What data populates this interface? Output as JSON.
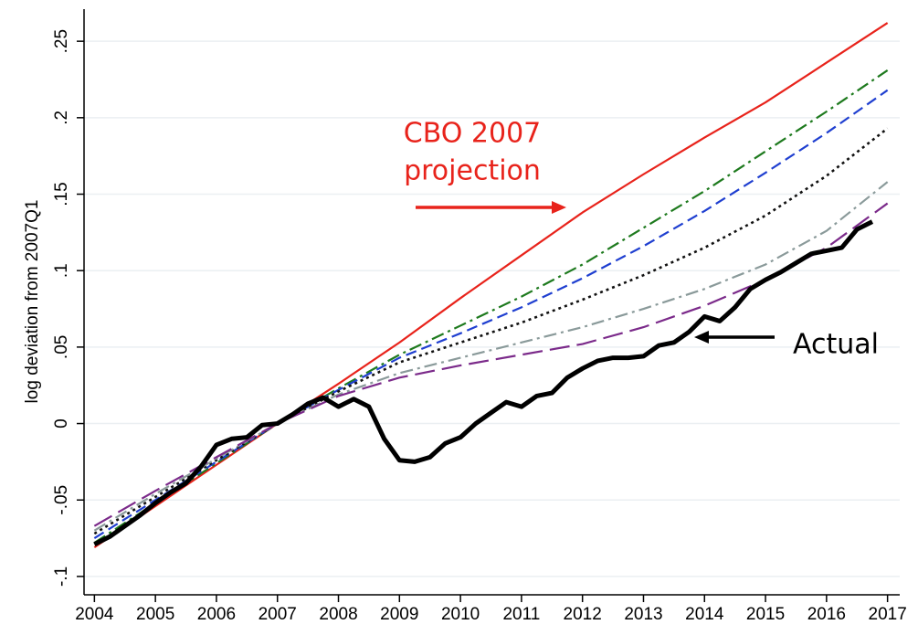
{
  "chart_data": {
    "type": "line",
    "y_label": "log deviation from 2007Q1",
    "xlim": [
      2003.83,
      2017.2
    ],
    "ylim": [
      -0.112,
      0.271
    ],
    "xticks": [
      2004,
      2005,
      2006,
      2007,
      2008,
      2009,
      2010,
      2011,
      2012,
      2013,
      2014,
      2015,
      2016,
      2017
    ],
    "yticks": [
      {
        "value": -0.1,
        "label": "-.1"
      },
      {
        "value": -0.05,
        "label": "-.05"
      },
      0,
      {
        "value": 0.05,
        "label": ".05"
      },
      {
        "value": 0.1,
        "label": ".1"
      },
      {
        "value": 0.15,
        "label": ".15"
      },
      {
        "value": 0.2,
        "label": ".2"
      },
      {
        "value": 0.25,
        "label": ".25"
      }
    ],
    "grid": true,
    "series": [
      {
        "color": "#e8231b",
        "style": "solid",
        "x": [
          2004,
          2005,
          2006,
          2007,
          2008,
          2009,
          2010,
          2011,
          2012,
          2013,
          2014,
          2015,
          2016,
          2017
        ],
        "values": [
          -0.081,
          -0.054,
          -0.027,
          0,
          0.026,
          0.053,
          0.082,
          0.11,
          0.138,
          0.163,
          0.187,
          0.21,
          0.236,
          0.262
        ]
      },
      {
        "color": "#1e7a1e",
        "style": "dashdot",
        "x": [
          2004,
          2005,
          2006,
          2007,
          2008,
          2009,
          2010,
          2011,
          2012,
          2013,
          2014,
          2015,
          2016,
          2017
        ],
        "values": [
          -0.078,
          -0.052,
          -0.026,
          0,
          0.023,
          0.045,
          0.064,
          0.083,
          0.104,
          0.128,
          0.152,
          0.178,
          0.204,
          0.231
        ]
      },
      {
        "color": "#1f3fd0",
        "style": "dash",
        "x": [
          2004,
          2005,
          2006,
          2007,
          2008,
          2009,
          2010,
          2011,
          2012,
          2013,
          2014,
          2015,
          2016,
          2017
        ],
        "values": [
          -0.075,
          -0.05,
          -0.025,
          0,
          0.022,
          0.043,
          0.059,
          0.076,
          0.095,
          0.116,
          0.139,
          0.164,
          0.19,
          0.218
        ]
      },
      {
        "color": "#111111",
        "style": "dot",
        "x": [
          2004,
          2005,
          2006,
          2007,
          2008,
          2009,
          2010,
          2011,
          2012,
          2013,
          2014,
          2015,
          2016,
          2017
        ],
        "values": [
          -0.072,
          -0.048,
          -0.024,
          0,
          0.021,
          0.04,
          0.053,
          0.066,
          0.081,
          0.097,
          0.115,
          0.136,
          0.162,
          0.193
        ]
      },
      {
        "color": "#8a9a9a",
        "style": "dashdot",
        "x": [
          2004,
          2005,
          2006,
          2007,
          2008,
          2009,
          2010,
          2011,
          2012,
          2013,
          2014,
          2015,
          2016,
          2017
        ],
        "values": [
          -0.07,
          -0.046,
          -0.023,
          0,
          0.019,
          0.033,
          0.043,
          0.053,
          0.063,
          0.075,
          0.088,
          0.104,
          0.126,
          0.158
        ]
      },
      {
        "color": "#7b2a8a",
        "style": "longdash",
        "x": [
          2004,
          2005,
          2006,
          2007,
          2008,
          2009,
          2010,
          2011,
          2012,
          2013,
          2014,
          2015,
          2016,
          2017
        ],
        "values": [
          -0.067,
          -0.044,
          -0.022,
          0,
          0.018,
          0.03,
          0.038,
          0.045,
          0.052,
          0.063,
          0.077,
          0.094,
          0.115,
          0.144
        ]
      },
      {
        "color": "#000000",
        "style": "thick",
        "x": [
          2004,
          2004.25,
          2004.5,
          2004.75,
          2005,
          2005.25,
          2005.5,
          2005.75,
          2006,
          2006.25,
          2006.5,
          2006.75,
          2007,
          2007.25,
          2007.5,
          2007.75,
          2008,
          2008.25,
          2008.5,
          2008.75,
          2009,
          2009.25,
          2009.5,
          2009.75,
          2010,
          2010.25,
          2010.5,
          2010.75,
          2011,
          2011.25,
          2011.5,
          2011.75,
          2012,
          2012.25,
          2012.5,
          2012.75,
          2013,
          2013.25,
          2013.5,
          2013.75,
          2014,
          2014.25,
          2014.5,
          2014.75,
          2015,
          2015.25,
          2015.5,
          2015.75,
          2016,
          2016.25,
          2016.5,
          2016.75
        ],
        "values": [
          -0.079,
          -0.074,
          -0.067,
          -0.06,
          -0.052,
          -0.045,
          -0.039,
          -0.028,
          -0.014,
          -0.01,
          -0.009,
          -0.001,
          0,
          0.006,
          0.013,
          0.017,
          0.011,
          0.016,
          0.011,
          -0.01,
          -0.024,
          -0.025,
          -0.022,
          -0.013,
          -0.009,
          0,
          0.007,
          0.014,
          0.011,
          0.018,
          0.02,
          0.03,
          0.036,
          0.041,
          0.043,
          0.043,
          0.044,
          0.051,
          0.053,
          0.06,
          0.07,
          0.067,
          0.076,
          0.088,
          0.094,
          0.099,
          0.105,
          0.111,
          0.113,
          0.115,
          0.127,
          0.132
        ]
      }
    ],
    "annotations": [
      {
        "lines": [
          "CBO 2007",
          "projection"
        ],
        "color": "#e8231b"
      },
      {
        "lines": [
          "Actual"
        ],
        "color": "#000000"
      }
    ]
  }
}
